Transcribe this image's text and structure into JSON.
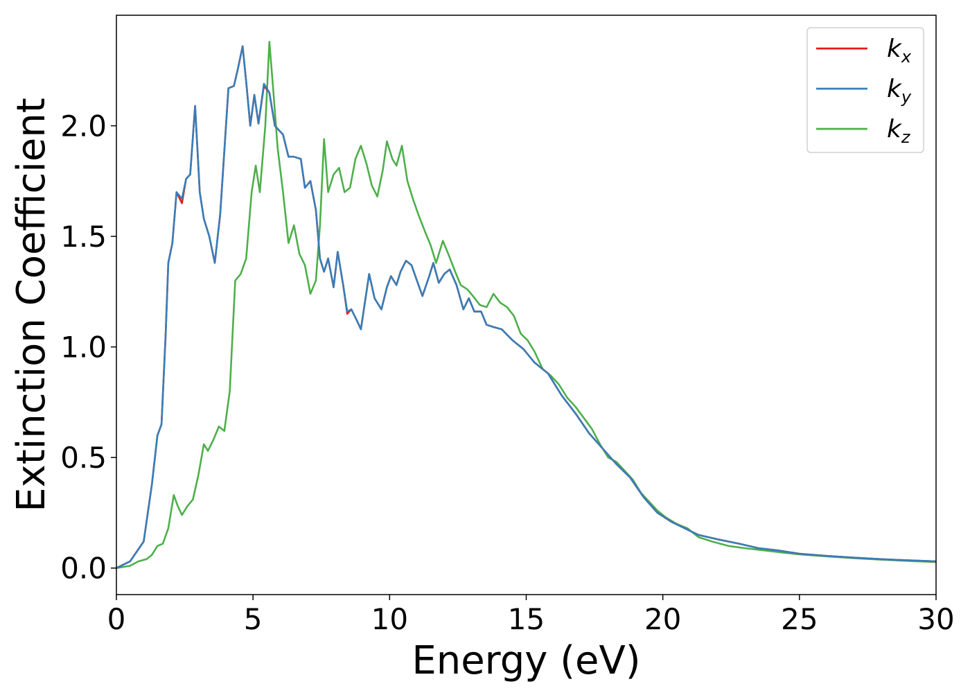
{
  "chart_data": {
    "type": "line",
    "xlabel": "Energy (eV)",
    "ylabel": "Extinction Coefficient",
    "xlim": [
      0,
      30
    ],
    "ylim": [
      -0.12,
      2.5
    ],
    "xticks": [
      0,
      5,
      10,
      15,
      20,
      25,
      30
    ],
    "xtick_labels": [
      "0",
      "5",
      "10",
      "15",
      "20",
      "25",
      "30"
    ],
    "yticks": [
      0.0,
      0.5,
      1.0,
      1.5,
      2.0
    ],
    "ytick_labels": [
      "0.0",
      "0.5",
      "1.0",
      "1.5",
      "2.0"
    ],
    "grid": false,
    "legend_position": "top-right",
    "series": [
      {
        "name": "k_x",
        "legend_main": "k",
        "legend_sub": "x",
        "color": "#e41a1c",
        "points": [
          [
            0,
            0
          ],
          [
            0.5,
            0.03
          ],
          [
            1,
            0.12
          ],
          [
            1.3,
            0.38
          ],
          [
            1.5,
            0.6
          ],
          [
            1.65,
            0.65
          ],
          [
            1.8,
            1.05
          ],
          [
            1.9,
            1.38
          ],
          [
            2.05,
            1.47
          ],
          [
            2.2,
            1.7
          ],
          [
            2.4,
            1.65
          ],
          [
            2.55,
            1.76
          ],
          [
            2.7,
            1.78
          ],
          [
            2.88,
            2.09
          ],
          [
            3.05,
            1.7
          ],
          [
            3.2,
            1.58
          ],
          [
            3.4,
            1.5
          ],
          [
            3.6,
            1.38
          ],
          [
            3.8,
            1.6
          ],
          [
            4.1,
            2.17
          ],
          [
            4.3,
            2.18
          ],
          [
            4.45,
            2.26
          ],
          [
            4.62,
            2.36
          ],
          [
            4.75,
            2.2
          ],
          [
            4.9,
            2.0
          ],
          [
            5.05,
            2.14
          ],
          [
            5.2,
            2.01
          ],
          [
            5.4,
            2.18
          ],
          [
            5.6,
            2.15
          ],
          [
            5.8,
            2.0
          ],
          [
            6.1,
            1.96
          ],
          [
            6.3,
            1.86
          ],
          [
            6.5,
            1.86
          ],
          [
            6.75,
            1.85
          ],
          [
            6.9,
            1.72
          ],
          [
            7.1,
            1.75
          ],
          [
            7.3,
            1.62
          ],
          [
            7.45,
            1.4
          ],
          [
            7.6,
            1.34
          ],
          [
            7.75,
            1.4
          ],
          [
            7.95,
            1.27
          ],
          [
            8.1,
            1.43
          ],
          [
            8.3,
            1.28
          ],
          [
            8.45,
            1.15
          ],
          [
            8.6,
            1.17
          ],
          [
            8.8,
            1.12
          ],
          [
            8.95,
            1.08
          ],
          [
            9.25,
            1.33
          ],
          [
            9.45,
            1.22
          ],
          [
            9.7,
            1.17
          ],
          [
            9.9,
            1.27
          ],
          [
            10.05,
            1.32
          ],
          [
            10.25,
            1.28
          ],
          [
            10.4,
            1.34
          ],
          [
            10.6,
            1.39
          ],
          [
            10.8,
            1.37
          ],
          [
            11.0,
            1.3
          ],
          [
            11.2,
            1.23
          ],
          [
            11.45,
            1.32
          ],
          [
            11.6,
            1.38
          ],
          [
            11.8,
            1.29
          ],
          [
            12.0,
            1.33
          ],
          [
            12.2,
            1.35
          ],
          [
            12.45,
            1.28
          ],
          [
            12.7,
            1.17
          ],
          [
            12.9,
            1.22
          ],
          [
            13.1,
            1.16
          ],
          [
            13.35,
            1.16
          ],
          [
            13.55,
            1.1
          ],
          [
            13.8,
            1.09
          ],
          [
            14.1,
            1.08
          ],
          [
            14.5,
            1.03
          ],
          [
            14.9,
            0.99
          ],
          [
            15.3,
            0.93
          ],
          [
            15.8,
            0.88
          ],
          [
            16.3,
            0.78
          ],
          [
            16.8,
            0.7
          ],
          [
            17.3,
            0.61
          ],
          [
            17.8,
            0.54
          ],
          [
            18.3,
            0.47
          ],
          [
            18.8,
            0.41
          ],
          [
            19.3,
            0.32
          ],
          [
            19.8,
            0.25
          ],
          [
            20.3,
            0.21
          ],
          [
            20.8,
            0.18
          ],
          [
            21.3,
            0.15
          ],
          [
            22.0,
            0.13
          ],
          [
            22.8,
            0.11
          ],
          [
            23.5,
            0.09
          ],
          [
            24.2,
            0.08
          ],
          [
            25.0,
            0.065
          ],
          [
            26.0,
            0.055
          ],
          [
            27.0,
            0.047
          ],
          [
            28.0,
            0.04
          ],
          [
            29.0,
            0.035
          ],
          [
            30.0,
            0.03
          ]
        ]
      },
      {
        "name": "k_y",
        "legend_main": "k",
        "legend_sub": "y",
        "color": "#377eb8",
        "points": [
          [
            0,
            0
          ],
          [
            0.5,
            0.03
          ],
          [
            1,
            0.12
          ],
          [
            1.3,
            0.38
          ],
          [
            1.5,
            0.6
          ],
          [
            1.65,
            0.65
          ],
          [
            1.8,
            1.05
          ],
          [
            1.9,
            1.38
          ],
          [
            2.05,
            1.47
          ],
          [
            2.2,
            1.7
          ],
          [
            2.4,
            1.67
          ],
          [
            2.55,
            1.76
          ],
          [
            2.7,
            1.78
          ],
          [
            2.88,
            2.09
          ],
          [
            3.05,
            1.7
          ],
          [
            3.2,
            1.58
          ],
          [
            3.4,
            1.5
          ],
          [
            3.6,
            1.38
          ],
          [
            3.8,
            1.6
          ],
          [
            4.1,
            2.17
          ],
          [
            4.3,
            2.18
          ],
          [
            4.45,
            2.26
          ],
          [
            4.62,
            2.36
          ],
          [
            4.75,
            2.2
          ],
          [
            4.9,
            2.0
          ],
          [
            5.05,
            2.14
          ],
          [
            5.2,
            2.01
          ],
          [
            5.4,
            2.19
          ],
          [
            5.6,
            2.15
          ],
          [
            5.8,
            2.0
          ],
          [
            6.1,
            1.96
          ],
          [
            6.3,
            1.86
          ],
          [
            6.5,
            1.86
          ],
          [
            6.75,
            1.85
          ],
          [
            6.9,
            1.72
          ],
          [
            7.1,
            1.75
          ],
          [
            7.3,
            1.62
          ],
          [
            7.45,
            1.4
          ],
          [
            7.6,
            1.34
          ],
          [
            7.75,
            1.4
          ],
          [
            7.95,
            1.27
          ],
          [
            8.1,
            1.43
          ],
          [
            8.3,
            1.28
          ],
          [
            8.45,
            1.16
          ],
          [
            8.6,
            1.17
          ],
          [
            8.8,
            1.12
          ],
          [
            8.95,
            1.08
          ],
          [
            9.25,
            1.33
          ],
          [
            9.45,
            1.22
          ],
          [
            9.7,
            1.17
          ],
          [
            9.9,
            1.27
          ],
          [
            10.05,
            1.32
          ],
          [
            10.25,
            1.28
          ],
          [
            10.4,
            1.34
          ],
          [
            10.6,
            1.39
          ],
          [
            10.8,
            1.37
          ],
          [
            11.0,
            1.3
          ],
          [
            11.2,
            1.23
          ],
          [
            11.45,
            1.32
          ],
          [
            11.6,
            1.38
          ],
          [
            11.8,
            1.29
          ],
          [
            12.0,
            1.33
          ],
          [
            12.2,
            1.35
          ],
          [
            12.45,
            1.28
          ],
          [
            12.7,
            1.17
          ],
          [
            12.9,
            1.22
          ],
          [
            13.1,
            1.16
          ],
          [
            13.35,
            1.16
          ],
          [
            13.55,
            1.1
          ],
          [
            13.8,
            1.09
          ],
          [
            14.1,
            1.08
          ],
          [
            14.5,
            1.03
          ],
          [
            14.9,
            0.99
          ],
          [
            15.3,
            0.93
          ],
          [
            15.8,
            0.88
          ],
          [
            16.3,
            0.78
          ],
          [
            16.8,
            0.7
          ],
          [
            17.3,
            0.61
          ],
          [
            17.8,
            0.54
          ],
          [
            18.3,
            0.47
          ],
          [
            18.8,
            0.41
          ],
          [
            19.3,
            0.32
          ],
          [
            19.8,
            0.25
          ],
          [
            20.3,
            0.21
          ],
          [
            20.8,
            0.18
          ],
          [
            21.3,
            0.15
          ],
          [
            22.0,
            0.13
          ],
          [
            22.8,
            0.11
          ],
          [
            23.5,
            0.09
          ],
          [
            24.2,
            0.08
          ],
          [
            25.0,
            0.065
          ],
          [
            26.0,
            0.055
          ],
          [
            27.0,
            0.047
          ],
          [
            28.0,
            0.04
          ],
          [
            29.0,
            0.035
          ],
          [
            30.0,
            0.03
          ]
        ]
      },
      {
        "name": "k_z",
        "legend_main": "k",
        "legend_sub": "z",
        "color": "#4daf4a",
        "points": [
          [
            0,
            0
          ],
          [
            0.5,
            0.01
          ],
          [
            0.8,
            0.03
          ],
          [
            1.1,
            0.04
          ],
          [
            1.3,
            0.06
          ],
          [
            1.5,
            0.1
          ],
          [
            1.7,
            0.11
          ],
          [
            1.9,
            0.18
          ],
          [
            2.1,
            0.33
          ],
          [
            2.25,
            0.28
          ],
          [
            2.4,
            0.24
          ],
          [
            2.6,
            0.28
          ],
          [
            2.8,
            0.31
          ],
          [
            3.0,
            0.42
          ],
          [
            3.2,
            0.56
          ],
          [
            3.35,
            0.53
          ],
          [
            3.55,
            0.58
          ],
          [
            3.75,
            0.64
          ],
          [
            3.95,
            0.62
          ],
          [
            4.15,
            0.8
          ],
          [
            4.35,
            1.3
          ],
          [
            4.55,
            1.33
          ],
          [
            4.75,
            1.4
          ],
          [
            4.95,
            1.7
          ],
          [
            5.1,
            1.82
          ],
          [
            5.25,
            1.7
          ],
          [
            5.45,
            2.0
          ],
          [
            5.6,
            2.38
          ],
          [
            5.75,
            2.15
          ],
          [
            5.9,
            1.9
          ],
          [
            6.1,
            1.7
          ],
          [
            6.3,
            1.47
          ],
          [
            6.5,
            1.55
          ],
          [
            6.7,
            1.42
          ],
          [
            6.9,
            1.37
          ],
          [
            7.1,
            1.24
          ],
          [
            7.3,
            1.3
          ],
          [
            7.45,
            1.55
          ],
          [
            7.6,
            1.94
          ],
          [
            7.75,
            1.7
          ],
          [
            7.95,
            1.78
          ],
          [
            8.15,
            1.81
          ],
          [
            8.35,
            1.7
          ],
          [
            8.55,
            1.72
          ],
          [
            8.75,
            1.85
          ],
          [
            8.95,
            1.91
          ],
          [
            9.15,
            1.83
          ],
          [
            9.35,
            1.73
          ],
          [
            9.55,
            1.68
          ],
          [
            9.75,
            1.8
          ],
          [
            9.9,
            1.93
          ],
          [
            10.1,
            1.85
          ],
          [
            10.25,
            1.82
          ],
          [
            10.45,
            1.91
          ],
          [
            10.65,
            1.75
          ],
          [
            10.85,
            1.67
          ],
          [
            11.05,
            1.6
          ],
          [
            11.3,
            1.52
          ],
          [
            11.5,
            1.46
          ],
          [
            11.7,
            1.38
          ],
          [
            11.95,
            1.48
          ],
          [
            12.15,
            1.42
          ],
          [
            12.4,
            1.34
          ],
          [
            12.6,
            1.28
          ],
          [
            12.85,
            1.26
          ],
          [
            13.05,
            1.23
          ],
          [
            13.3,
            1.19
          ],
          [
            13.55,
            1.18
          ],
          [
            13.8,
            1.24
          ],
          [
            14.05,
            1.2
          ],
          [
            14.3,
            1.18
          ],
          [
            14.55,
            1.14
          ],
          [
            14.8,
            1.06
          ],
          [
            15.05,
            1.03
          ],
          [
            15.3,
            0.98
          ],
          [
            15.6,
            0.9
          ],
          [
            15.9,
            0.87
          ],
          [
            16.2,
            0.83
          ],
          [
            16.5,
            0.77
          ],
          [
            16.8,
            0.73
          ],
          [
            17.1,
            0.68
          ],
          [
            17.4,
            0.63
          ],
          [
            17.7,
            0.56
          ],
          [
            18.0,
            0.5
          ],
          [
            18.3,
            0.48
          ],
          [
            18.6,
            0.44
          ],
          [
            18.9,
            0.4
          ],
          [
            19.2,
            0.34
          ],
          [
            19.5,
            0.3
          ],
          [
            19.8,
            0.26
          ],
          [
            20.1,
            0.23
          ],
          [
            20.5,
            0.2
          ],
          [
            20.9,
            0.18
          ],
          [
            21.3,
            0.14
          ],
          [
            21.8,
            0.12
          ],
          [
            22.4,
            0.1
          ],
          [
            23.0,
            0.09
          ],
          [
            23.7,
            0.08
          ],
          [
            24.4,
            0.07
          ],
          [
            25.0,
            0.062
          ],
          [
            26.0,
            0.053
          ],
          [
            27.0,
            0.045
          ],
          [
            28.0,
            0.038
          ],
          [
            29.0,
            0.032
          ],
          [
            30.0,
            0.027
          ]
        ]
      }
    ]
  }
}
